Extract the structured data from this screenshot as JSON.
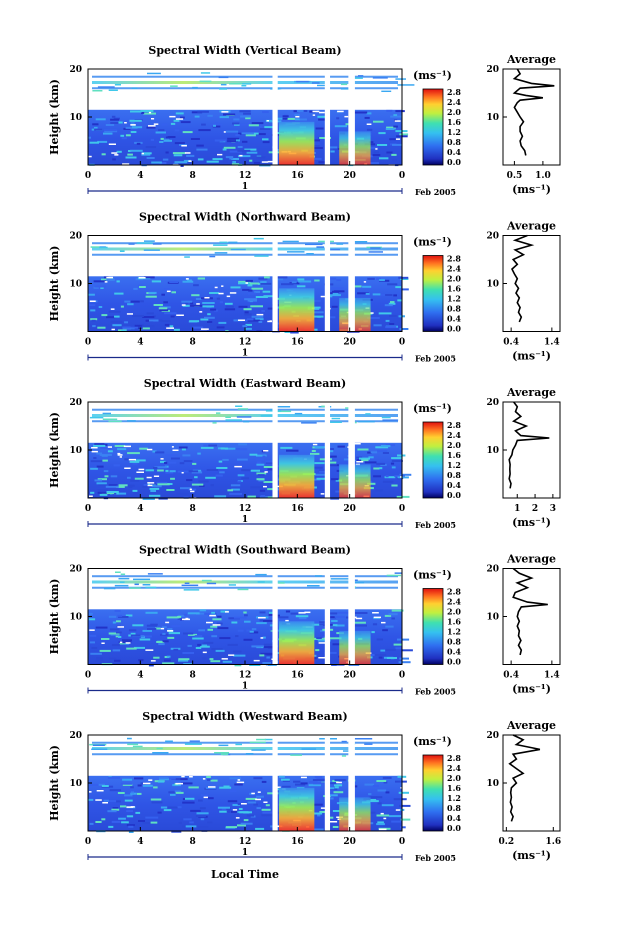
{
  "chart_data": {
    "type": "heatmap",
    "xlabel": "Local Time",
    "date_label": "Feb 2005",
    "day_label": "1",
    "x_ticks": [
      "0",
      "4",
      "8",
      "12",
      "16",
      "20",
      "0"
    ],
    "xlim": [
      0,
      24
    ],
    "ylim": [
      0,
      20
    ],
    "colorbar": {
      "unit": "(ms⁻¹)",
      "ticks": [
        "2.8",
        "2.4",
        "2.0",
        "1.6",
        "1.2",
        "0.8",
        "0.4",
        "0.0"
      ]
    },
    "panels": [
      {
        "title": "Spectral Width (Vertical Beam)",
        "ylabel": "Height (km)",
        "y_ticks": [
          "20",
          "10"
        ],
        "avg_title": "Average",
        "avg_xlabel": "(ms⁻¹)",
        "avg_xticks": [
          "0.5",
          "1.0"
        ],
        "avg_xlim": [
          0.3,
          1.3
        ],
        "avg_profile": [
          [
            0.7,
            2
          ],
          [
            0.68,
            3
          ],
          [
            0.62,
            4
          ],
          [
            0.6,
            5
          ],
          [
            0.64,
            6
          ],
          [
            0.6,
            7
          ],
          [
            0.6,
            8
          ],
          [
            0.66,
            9
          ],
          [
            0.6,
            10
          ],
          [
            0.55,
            11
          ],
          [
            0.5,
            12
          ],
          [
            0.55,
            13
          ],
          [
            0.6,
            13.5
          ],
          [
            1.0,
            14
          ],
          [
            0.7,
            14.5
          ],
          [
            0.5,
            15
          ],
          [
            0.6,
            16
          ],
          [
            1.2,
            16.5
          ],
          [
            0.8,
            17
          ],
          [
            0.5,
            18
          ],
          [
            0.6,
            19
          ],
          [
            0.55,
            20
          ]
        ]
      },
      {
        "title": "Spectral Width (Northward Beam)",
        "ylabel": "Height (km)",
        "y_ticks": [
          "20",
          "10"
        ],
        "avg_title": "Average",
        "avg_xlabel": "(ms⁻¹)",
        "avg_xticks": [
          "0.4",
          "1.4"
        ],
        "avg_xlim": [
          0.2,
          1.6
        ],
        "avg_profile": [
          [
            0.6,
            2
          ],
          [
            0.65,
            3
          ],
          [
            0.58,
            4
          ],
          [
            0.62,
            5
          ],
          [
            0.55,
            6
          ],
          [
            0.6,
            7
          ],
          [
            0.52,
            8
          ],
          [
            0.58,
            9
          ],
          [
            0.5,
            10
          ],
          [
            0.55,
            11
          ],
          [
            0.48,
            12
          ],
          [
            0.42,
            13
          ],
          [
            0.55,
            14
          ],
          [
            0.45,
            15
          ],
          [
            0.7,
            16
          ],
          [
            0.5,
            17
          ],
          [
            0.9,
            18
          ],
          [
            0.5,
            19
          ],
          [
            0.8,
            20
          ]
        ]
      },
      {
        "title": "Spectral Width (Eastward Beam)",
        "ylabel": "Height (km)",
        "y_ticks": [
          "20",
          "10"
        ],
        "avg_title": "Average",
        "avg_xlabel": "(ms⁻¹)",
        "avg_xticks": [
          "1",
          "2",
          "3"
        ],
        "avg_xlim": [
          0.2,
          3.4
        ],
        "avg_profile": [
          [
            0.6,
            2
          ],
          [
            0.65,
            3
          ],
          [
            0.55,
            4
          ],
          [
            0.6,
            5
          ],
          [
            0.58,
            6
          ],
          [
            0.6,
            7
          ],
          [
            0.55,
            8
          ],
          [
            0.7,
            9
          ],
          [
            0.75,
            10
          ],
          [
            0.9,
            11
          ],
          [
            1.0,
            12
          ],
          [
            2.8,
            12.5
          ],
          [
            1.2,
            13
          ],
          [
            0.9,
            14
          ],
          [
            1.5,
            15
          ],
          [
            0.8,
            16
          ],
          [
            1.2,
            17
          ],
          [
            0.9,
            18
          ],
          [
            1.0,
            19
          ],
          [
            0.8,
            20
          ]
        ]
      },
      {
        "title": "Spectral Width (Southward Beam)",
        "ylabel": "Height (km)",
        "y_ticks": [
          "20",
          "10"
        ],
        "avg_title": "Average",
        "avg_xlabel": "(ms⁻¹)",
        "avg_xticks": [
          "0.4",
          "1.4"
        ],
        "avg_xlim": [
          0.2,
          1.6
        ],
        "avg_profile": [
          [
            0.62,
            2
          ],
          [
            0.65,
            3
          ],
          [
            0.58,
            4
          ],
          [
            0.64,
            5
          ],
          [
            0.58,
            6
          ],
          [
            0.6,
            7
          ],
          [
            0.55,
            8
          ],
          [
            0.6,
            9
          ],
          [
            0.55,
            10
          ],
          [
            0.58,
            11
          ],
          [
            0.65,
            12
          ],
          [
            1.3,
            12.5
          ],
          [
            0.8,
            13
          ],
          [
            0.45,
            14
          ],
          [
            0.5,
            15
          ],
          [
            0.8,
            16
          ],
          [
            0.55,
            17
          ],
          [
            0.9,
            18
          ],
          [
            0.6,
            19
          ],
          [
            0.45,
            20
          ]
        ]
      },
      {
        "title": "Spectral Width (Westward Beam)",
        "ylabel": "Height (km)",
        "y_ticks": [
          "20",
          "10"
        ],
        "avg_title": "Average",
        "avg_xlabel": "(ms⁻¹)",
        "avg_xticks": [
          "0.2",
          "1.6"
        ],
        "avg_xlim": [
          0.1,
          1.8
        ],
        "avg_profile": [
          [
            0.35,
            2
          ],
          [
            0.4,
            3
          ],
          [
            0.33,
            4
          ],
          [
            0.37,
            5
          ],
          [
            0.32,
            6
          ],
          [
            0.35,
            7
          ],
          [
            0.33,
            8
          ],
          [
            0.35,
            9
          ],
          [
            0.5,
            10
          ],
          [
            0.4,
            11
          ],
          [
            0.7,
            12
          ],
          [
            0.5,
            13
          ],
          [
            0.3,
            14
          ],
          [
            0.5,
            15
          ],
          [
            0.4,
            16
          ],
          [
            1.2,
            17
          ],
          [
            0.5,
            18
          ],
          [
            0.7,
            19
          ],
          [
            0.4,
            20
          ]
        ]
      }
    ]
  }
}
